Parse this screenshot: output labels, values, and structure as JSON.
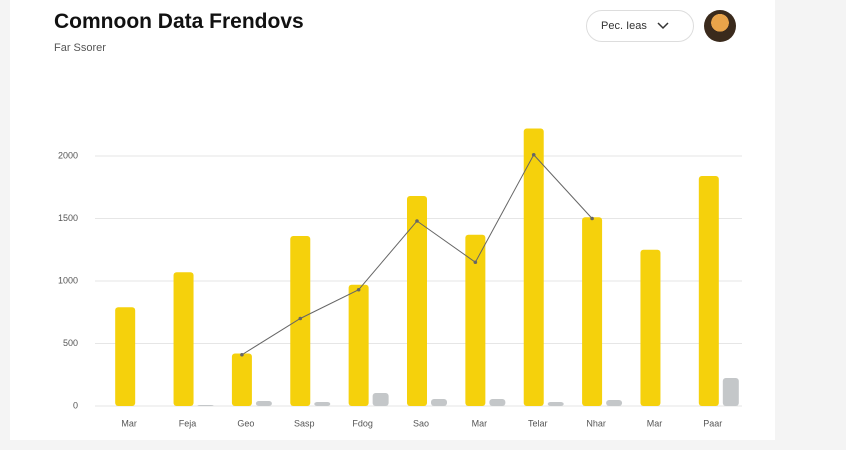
{
  "header": {
    "title": "Comnoon Data Frendovs",
    "subtitle": "Far Ssorer",
    "dropdown": "Pec. Ieas"
  },
  "chart_data": {
    "type": "bar",
    "categories": [
      "Mar",
      "Feja",
      "Geo",
      "Sasp",
      "Fdog",
      "Sao",
      "Mar",
      "Telar",
      "Nhar",
      "Mar",
      "Paar"
    ],
    "series": [
      {
        "color": "#f5d10c",
        "values": [
          790,
          1070,
          420,
          1360,
          970,
          1680,
          1370,
          2220,
          1510,
          1250,
          1840
        ]
      },
      {
        "color": "#c4c7c9",
        "values": [
          0,
          8,
          40,
          32,
          104,
          56,
          56,
          32,
          48,
          0,
          224
        ]
      }
    ],
    "line": {
      "color": "#666666",
      "values": [
        null,
        null,
        410,
        700,
        930,
        1480,
        1150,
        2010,
        1500,
        null,
        null
      ]
    },
    "ylim": [
      0,
      2300
    ],
    "yticks": [
      0,
      500,
      1000,
      1500,
      2000
    ],
    "grid": true
  }
}
